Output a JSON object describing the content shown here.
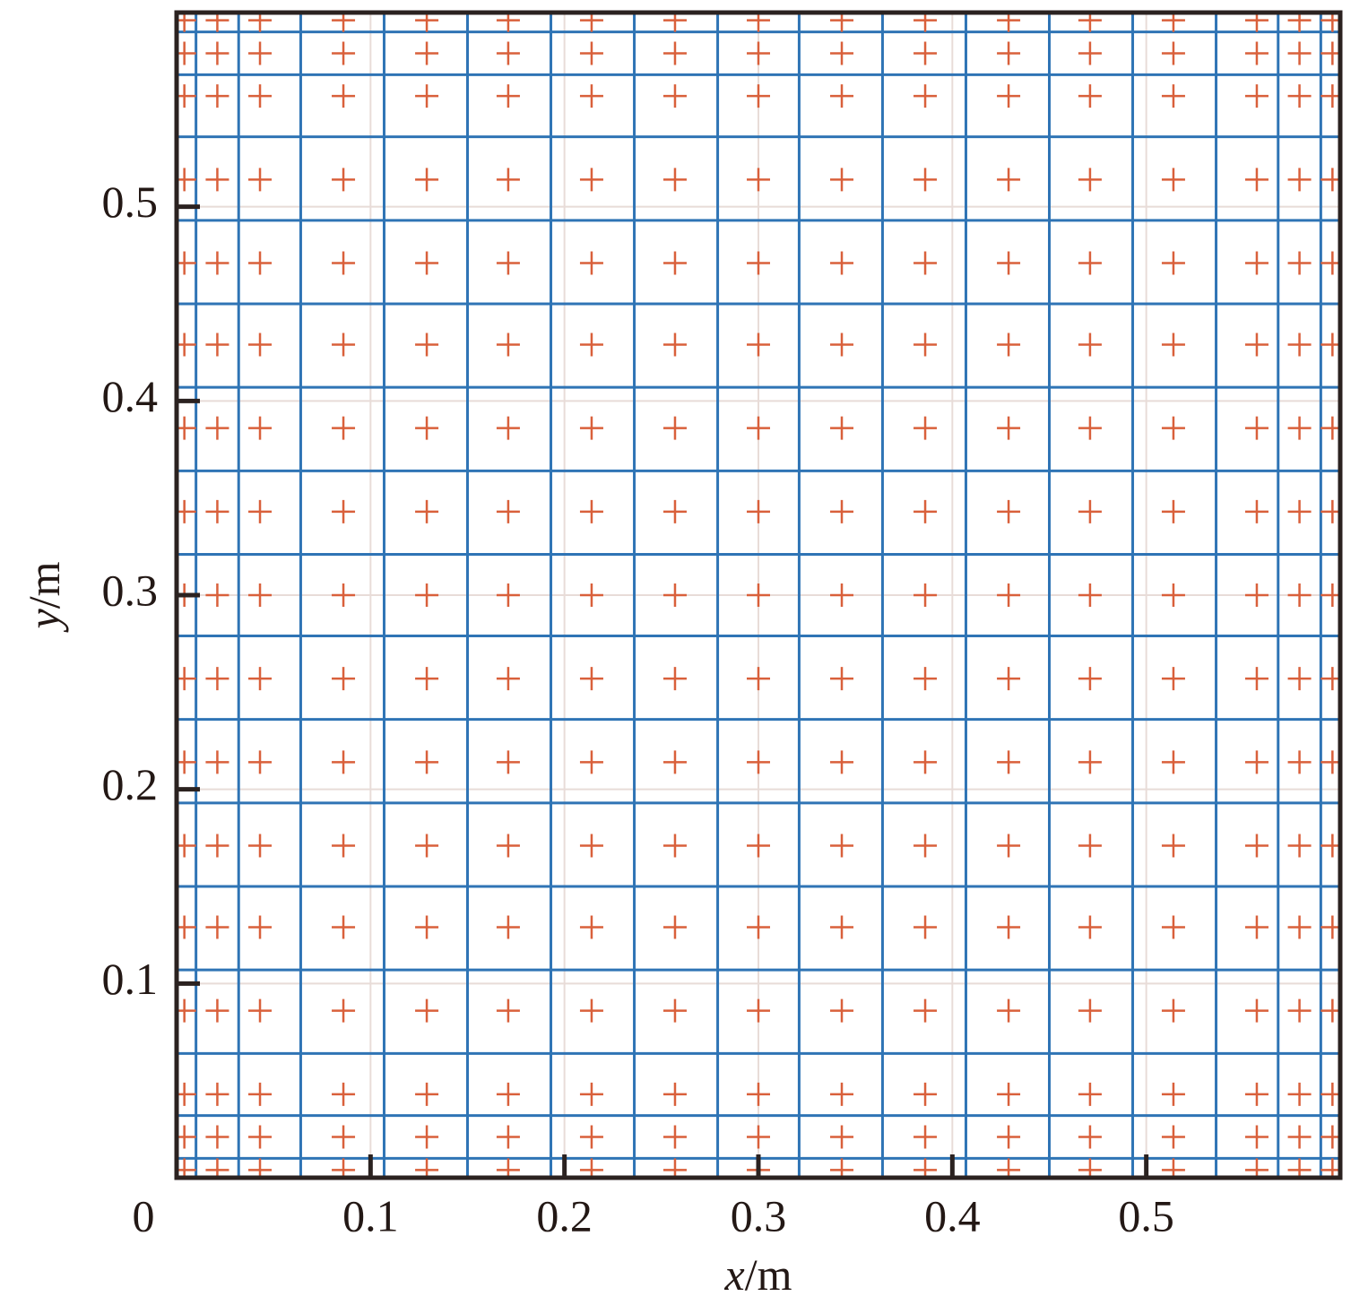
{
  "chart_data": {
    "type": "mesh",
    "xlabel": "x/m",
    "ylabel": "y/m",
    "xlim": [
      0,
      0.6
    ],
    "ylim": [
      0,
      0.6
    ],
    "xticks": [
      0,
      0.1,
      0.2,
      0.3,
      0.4,
      0.5
    ],
    "yticks": [
      0.1,
      0.2,
      0.3,
      0.4,
      0.5
    ],
    "grid": true,
    "mesh_color": "#2f74b5",
    "mesh_x": [
      0.01,
      0.032,
      0.064,
      0.107,
      0.15,
      0.193,
      0.236,
      0.279,
      0.321,
      0.364,
      0.407,
      0.45,
      0.493,
      0.536,
      0.568,
      0.59
    ],
    "mesh_y": [
      0.01,
      0.032,
      0.064,
      0.107,
      0.15,
      0.193,
      0.236,
      0.279,
      0.321,
      0.364,
      0.407,
      0.45,
      0.493,
      0.536,
      0.568,
      0.59
    ],
    "point_color": "#d9603b",
    "point_x": [
      0.004,
      0.021,
      0.043,
      0.086,
      0.129,
      0.171,
      0.214,
      0.257,
      0.3,
      0.343,
      0.386,
      0.429,
      0.471,
      0.514,
      0.557,
      0.579,
      0.596
    ],
    "point_y": [
      0.004,
      0.021,
      0.043,
      0.086,
      0.129,
      0.171,
      0.214,
      0.257,
      0.3,
      0.343,
      0.386,
      0.429,
      0.471,
      0.514,
      0.557,
      0.579,
      0.596
    ]
  }
}
